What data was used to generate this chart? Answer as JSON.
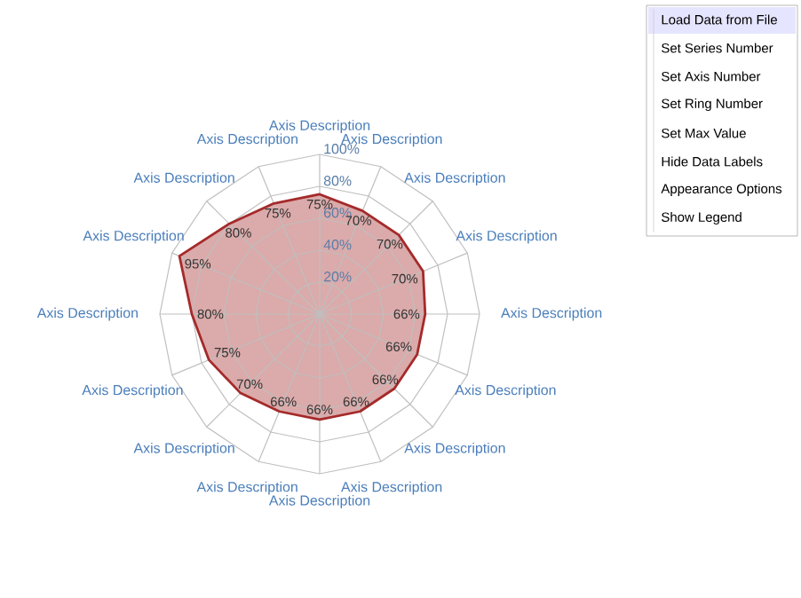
{
  "chart_data": {
    "type": "radar",
    "categories": [
      "Axis Description",
      "Axis Description",
      "Axis Description",
      "Axis Description",
      "Axis Description",
      "Axis Description",
      "Axis Description",
      "Axis Description",
      "Axis Description",
      "Axis Description",
      "Axis Description",
      "Axis Description",
      "Axis Description",
      "Axis Description",
      "Axis Description",
      "Axis Description"
    ],
    "series": [
      {
        "color": "#a52a2a",
        "values": [
          75,
          70,
          70,
          70,
          66,
          66,
          66,
          66,
          66,
          66,
          70,
          75,
          80,
          95,
          80,
          75
        ],
        "value_labels": [
          "75%",
          "70%",
          "70%",
          "70%",
          "66%",
          "66%",
          "66%",
          "66%",
          "66%",
          "66%",
          "70%",
          "75%",
          "80%",
          "95%",
          "80%",
          "75%"
        ]
      }
    ],
    "ylim": [
      0,
      100
    ],
    "yticks": [
      {
        "value": 20,
        "label": "20%"
      },
      {
        "value": 40,
        "label": "40%"
      },
      {
        "value": 60,
        "label": "60%"
      },
      {
        "value": 80,
        "label": "80%"
      },
      {
        "value": 100,
        "label": "100%"
      }
    ],
    "grid": true,
    "annotations": [
      "Load Data from File",
      "Set Series Number",
      "Set Axis Number",
      "Set Ring Number",
      "Set Max Value",
      "Hide Data Labels",
      "Appearance Options",
      "Show Legend"
    ]
  }
}
